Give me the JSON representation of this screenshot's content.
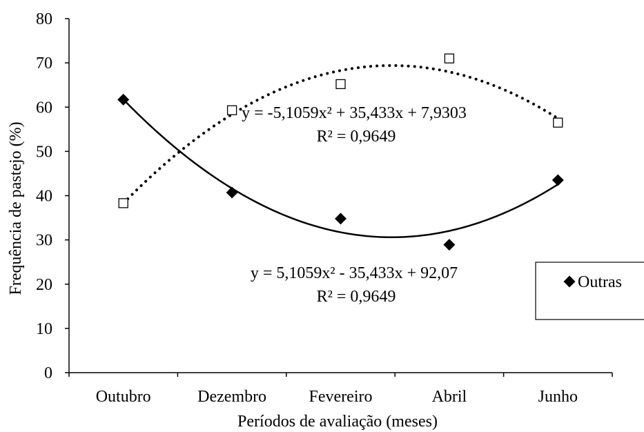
{
  "chart_data": {
    "type": "scatter",
    "categories": [
      "Outubro",
      "Dezembro",
      "Fevereiro",
      "Abril",
      "Junho"
    ],
    "x": [
      1,
      2,
      3,
      4,
      5
    ],
    "xlabel": "Períodos de avaliação (meses)",
    "ylabel": "Frequência de pastejo (%)",
    "ylim": [
      0,
      80
    ],
    "yticks": [
      "0",
      "10",
      "20",
      "30",
      "40",
      "50",
      "60",
      "70",
      "80"
    ],
    "grid": false,
    "legend_position": "right",
    "series": [
      {
        "marker": "square-open",
        "trend": "dotted",
        "values": [
          38.3,
          59.3,
          65.2,
          71.0,
          56.5
        ],
        "trendline": {
          "a": -5.1059,
          "b": 35.433,
          "c": 7.9303
        },
        "equation": "y = -5,1059x² + 35,433x + 7,9303",
        "r2": "R² = 0,9649"
      },
      {
        "name": "Outras",
        "marker": "diamond-filled",
        "trend": "solid",
        "values": [
          61.7,
          40.7,
          34.8,
          28.9,
          43.5
        ],
        "trendline": {
          "a": 5.1059,
          "b": -35.433,
          "c": 92.07
        },
        "equation": "y = 5,1059x² - 35,433x + 92,07",
        "r2": "R² = 0,9649"
      }
    ]
  }
}
